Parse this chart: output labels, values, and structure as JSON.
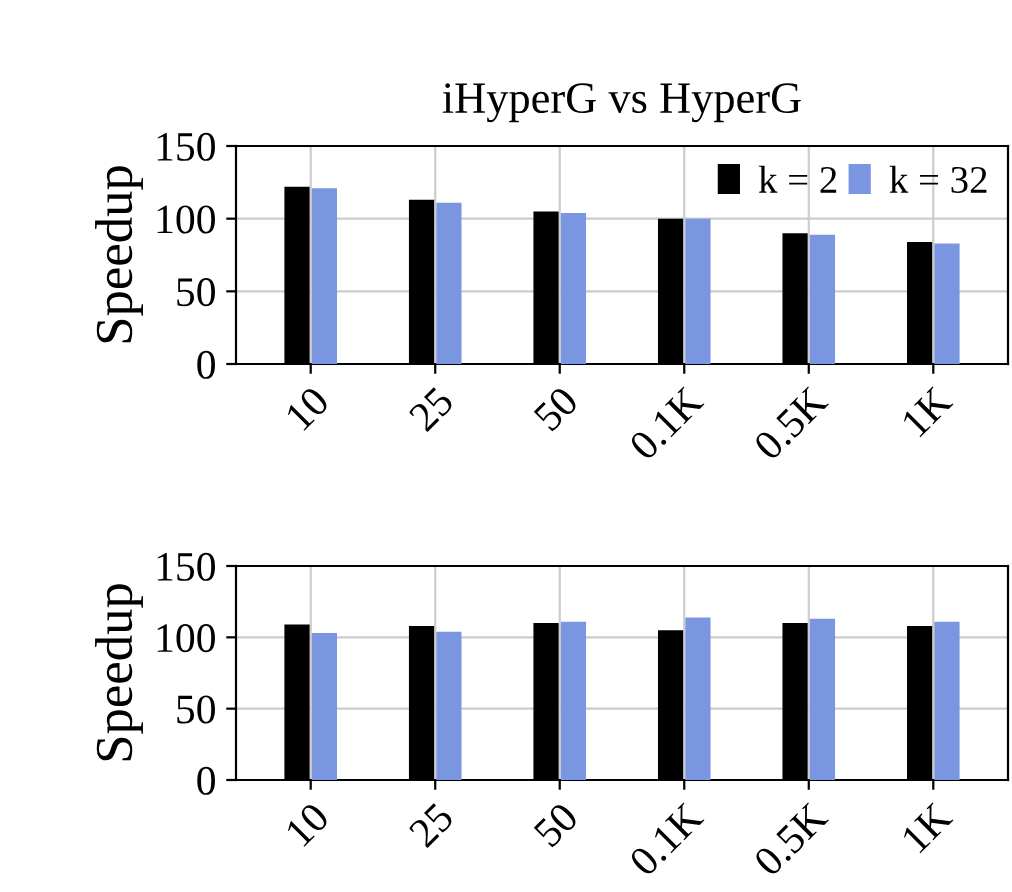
{
  "chart_data": [
    {
      "type": "bar",
      "title": "iHyperG vs HyperG",
      "ylabel": "Speedup",
      "categories": [
        "10",
        "25",
        "50",
        "0.1K",
        "0.5K",
        "1K"
      ],
      "ylim": [
        0,
        150
      ],
      "yticks": [
        0,
        50,
        100,
        150
      ],
      "grid": true,
      "legend": "top right",
      "series": [
        {
          "name": "k = 2",
          "color": "#000000",
          "values": [
            121,
            112,
            104,
            99,
            89,
            83
          ]
        },
        {
          "name": "k = 32",
          "color": "#7b96e0",
          "values": [
            120,
            110,
            103,
            99,
            88,
            82
          ]
        }
      ]
    },
    {
      "type": "bar",
      "ylabel": "Speedup",
      "categories": [
        "10",
        "25",
        "50",
        "0.1K",
        "0.5K",
        "1K"
      ],
      "ylim": [
        0,
        150
      ],
      "yticks": [
        0,
        50,
        100,
        150
      ],
      "grid": true,
      "series": [
        {
          "color": "#000000",
          "values": [
            108,
            107,
            109,
            104,
            109,
            107
          ]
        },
        {
          "color": "#7b96e0",
          "values": [
            102,
            103,
            110,
            113,
            112,
            110
          ]
        }
      ]
    }
  ]
}
